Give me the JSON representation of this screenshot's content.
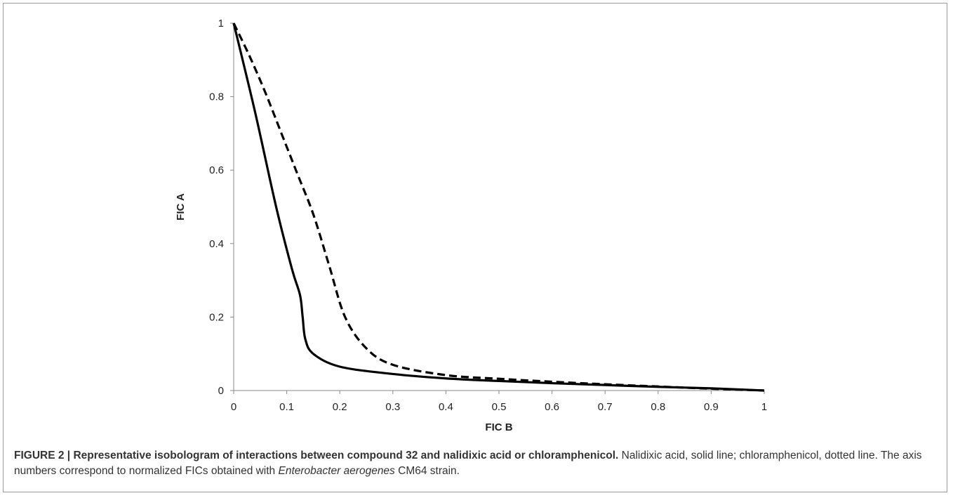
{
  "chart_data": {
    "type": "line",
    "xlabel": "FIC B",
    "ylabel": "FIC A",
    "xlim": [
      0,
      1
    ],
    "ylim": [
      0,
      1
    ],
    "x_ticks": [
      "0",
      "0.1",
      "0.2",
      "0.3",
      "0.4",
      "0.5",
      "0.6",
      "0.7",
      "0.8",
      "0.9",
      "1"
    ],
    "y_ticks": [
      "0",
      "0.2",
      "0.4",
      "0.6",
      "0.8",
      "1"
    ],
    "grid": false,
    "legend": "none",
    "series": [
      {
        "style": "solid",
        "color": "#000000",
        "points": [
          [
            0,
            1
          ],
          [
            0.04,
            0.76
          ],
          [
            0.08,
            0.5
          ],
          [
            0.11,
            0.33
          ],
          [
            0.125,
            0.26
          ],
          [
            0.13,
            0.2
          ],
          [
            0.135,
            0.14
          ],
          [
            0.15,
            0.1
          ],
          [
            0.2,
            0.065
          ],
          [
            0.3,
            0.045
          ],
          [
            0.4,
            0.033
          ],
          [
            0.5,
            0.026
          ],
          [
            0.6,
            0.02
          ],
          [
            0.7,
            0.015
          ],
          [
            0.8,
            0.01
          ],
          [
            0.9,
            0.006
          ],
          [
            1,
            0
          ]
        ]
      },
      {
        "style": "dashed",
        "color": "#000000",
        "points": [
          [
            0,
            1
          ],
          [
            0.03,
            0.91
          ],
          [
            0.06,
            0.81
          ],
          [
            0.09,
            0.7
          ],
          [
            0.12,
            0.59
          ],
          [
            0.15,
            0.48
          ],
          [
            0.18,
            0.34
          ],
          [
            0.21,
            0.2
          ],
          [
            0.25,
            0.115
          ],
          [
            0.3,
            0.07
          ],
          [
            0.4,
            0.042
          ],
          [
            0.5,
            0.032
          ],
          [
            0.6,
            0.024
          ],
          [
            0.7,
            0.017
          ],
          [
            0.8,
            0.011
          ],
          [
            0.9,
            0.005
          ],
          [
            1,
            0
          ]
        ]
      }
    ]
  },
  "caption": {
    "label": "FIGURE 2 | ",
    "title": "Representative isobologram of interactions between compound 32 and nalidixic acid or chloramphenicol.",
    "text_1": " Nalidixic acid, solid line; chloramphenicol, dotted line. The axis numbers correspond to normalized FICs obtained with ",
    "organism": "Enterobacter aerogenes",
    "text_2": " CM64 strain."
  }
}
